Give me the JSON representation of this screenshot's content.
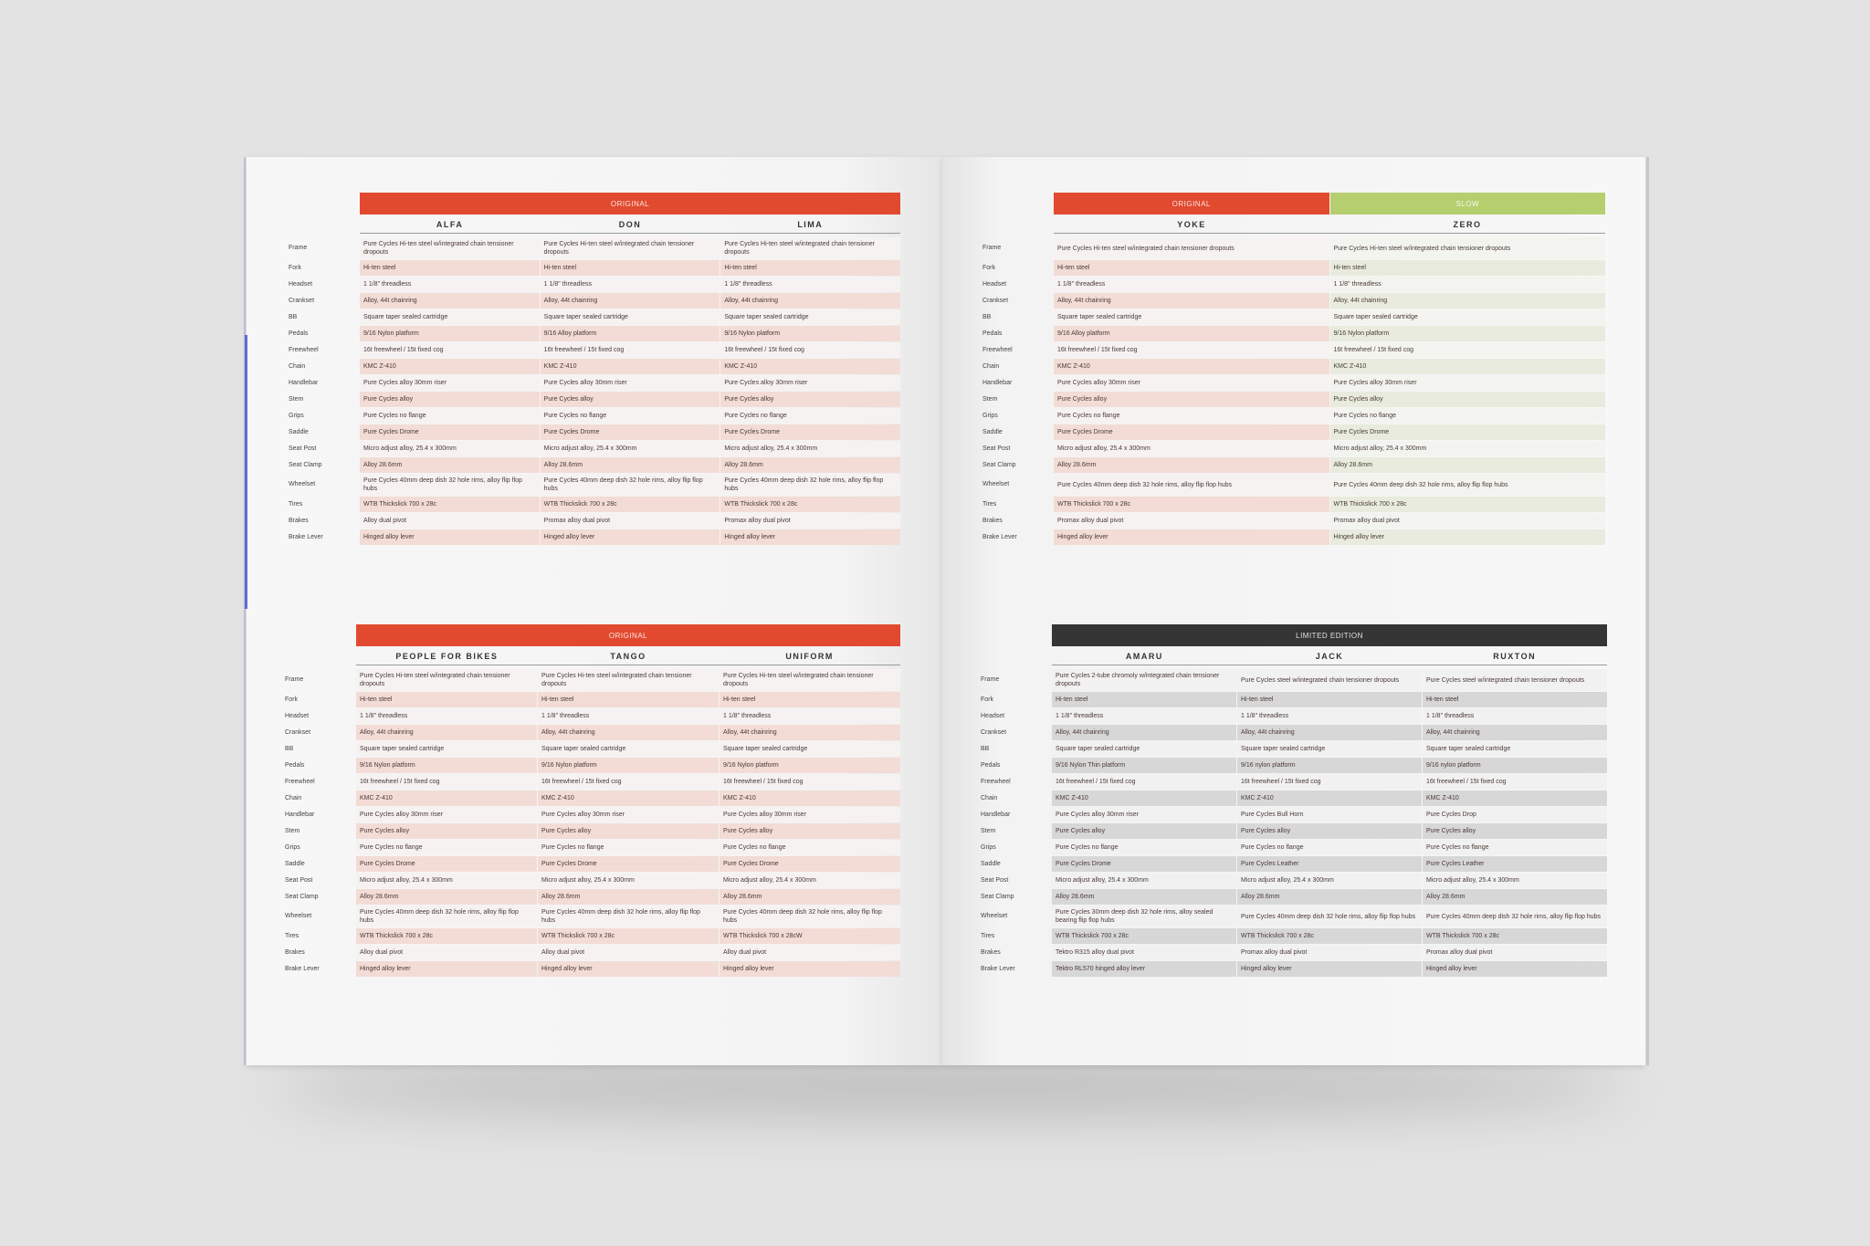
{
  "row_labels": [
    "Frame",
    "Fork",
    "Headset",
    "Crankset",
    "BB",
    "Pedals",
    "Freewheel",
    "Chain",
    "Handlebar",
    "Stem",
    "Grips",
    "Saddle",
    "Seat Post",
    "Seat Clamp",
    "Wheelset",
    "Tires",
    "Brakes",
    "Brake Lever"
  ],
  "colors": {
    "original": "#e24a2f",
    "slow": "#b5cf6f",
    "limited": "#353535",
    "orange_row": "#f2dcd5",
    "orange_row_alt": "#f6f2f1",
    "green_row": "#e8ebdd",
    "green_row_alt": "#f3f4ef",
    "gray_row": "#d7d7d7",
    "gray_row_alt": "#f1f1f1"
  },
  "sections": [
    {
      "id": "s1",
      "bars": [
        {
          "label": "ORIGINAL",
          "color": "original",
          "span": 3
        }
      ],
      "models": [
        "ALFA",
        "DON",
        "LIMA"
      ],
      "themes": [
        "orange",
        "orange",
        "orange"
      ],
      "rows": [
        [
          "Pure Cycles Hi-ten steel w/integrated chain tensioner dropouts",
          "Pure Cycles Hi-ten steel w/integrated chain tensioner dropouts",
          "Pure Cycles Hi-ten steel w/integrated chain tensioner dropouts"
        ],
        [
          "Hi-ten steel",
          "Hi-ten steel",
          "Hi-ten steel"
        ],
        [
          "1 1/8\" threadless",
          "1 1/8\" threadless",
          "1 1/8\" threadless"
        ],
        [
          "Alloy, 44t chainring",
          "Alloy, 44t chainring",
          "Alloy, 44t chainring"
        ],
        [
          "Square taper sealed cartridge",
          "Square taper sealed cartridge",
          "Square taper sealed cartridge"
        ],
        [
          "9/16 Nylon platform",
          "9/16 Alloy platform",
          "9/16 Nylon platform"
        ],
        [
          "16t freewheel / 15t fixed cog",
          "16t freewheel / 15t fixed cog",
          "16t freewheel / 15t fixed cog"
        ],
        [
          "KMC Z-410",
          "KMC Z-410",
          "KMC Z-410"
        ],
        [
          "Pure Cycles alloy 30mm riser",
          "Pure Cycles alloy 30mm riser",
          "Pure Cycles alloy 30mm riser"
        ],
        [
          "Pure Cycles alloy",
          "Pure Cycles alloy",
          "Pure Cycles alloy"
        ],
        [
          "Pure Cycles no flange",
          "Pure Cycles no flange",
          "Pure Cycles no flange"
        ],
        [
          "Pure Cycles Drome",
          "Pure Cycles Drome",
          "Pure Cycles Drome"
        ],
        [
          "Micro adjust alloy, 25.4 x 300mm",
          "Micro adjust alloy, 25.4 x 300mm",
          "Micro adjust alloy, 25.4 x 300mm"
        ],
        [
          "Alloy 28.6mm",
          "Alloy 28.6mm",
          "Alloy 28.6mm"
        ],
        [
          "Pure Cycles 40mm deep dish 32 hole rims, alloy flip flop hubs",
          "Pure Cycles 40mm deep dish 32 hole rims, alloy flip flop hubs",
          "Pure Cycles 40mm deep dish 32 hole rims, alloy flip flop hubs"
        ],
        [
          "WTB Thickslick 700 x 28c",
          "WTB Thickslick 700 x 28c",
          "WTB Thickslick 700 x 28c"
        ],
        [
          "Alloy dual pivot",
          "Promax alloy dual pivot",
          "Promax alloy dual pivot"
        ],
        [
          "Hinged alloy lever",
          "Hinged alloy lever",
          "Hinged alloy lever"
        ]
      ]
    },
    {
      "id": "s2",
      "bars": [
        {
          "label": "ORIGINAL",
          "color": "original",
          "span": 3
        }
      ],
      "models": [
        "PEOPLE FOR BIKES",
        "TANGO",
        "UNIFORM"
      ],
      "themes": [
        "orange",
        "orange",
        "orange"
      ],
      "rows": [
        [
          "Pure Cycles Hi-ten steel w/integrated chain tensioner dropouts",
          "Pure Cycles Hi-ten steel w/integrated chain tensioner dropouts",
          "Pure Cycles Hi-ten steel w/integrated chain tensioner dropouts"
        ],
        [
          "Hi-ten steel",
          "Hi-ten steel",
          "Hi-ten steel"
        ],
        [
          "1 1/8\" threadless",
          "1 1/8\" threadless",
          "1 1/8\" threadless"
        ],
        [
          "Alloy, 44t chainring",
          "Alloy, 44t chainring",
          "Alloy, 44t chainring"
        ],
        [
          "Square taper sealed cartridge",
          "Square taper sealed cartridge",
          "Square taper sealed cartridge"
        ],
        [
          "9/16 Nylon platform",
          "9/16 Nylon platform",
          "9/16 Nylon platform"
        ],
        [
          "16t freewheel / 15t fixed cog",
          "16t freewheel / 15t fixed cog",
          "16t freewheel / 15t fixed cog"
        ],
        [
          "KMC Z-410",
          "KMC Z-410",
          "KMC Z-410"
        ],
        [
          "Pure Cycles alloy 30mm riser",
          "Pure Cycles alloy 30mm riser",
          "Pure Cycles alloy 30mm riser"
        ],
        [
          "Pure Cycles alloy",
          "Pure Cycles alloy",
          "Pure Cycles alloy"
        ],
        [
          "Pure Cycles no flange",
          "Pure Cycles no flange",
          "Pure Cycles no flange"
        ],
        [
          "Pure Cycles Drome",
          "Pure Cycles Drome",
          "Pure Cycles Drome"
        ],
        [
          "Micro adjust alloy, 25.4 x 300mm",
          "Micro adjust alloy, 25.4 x 300mm",
          "Micro adjust alloy, 25.4 x 300mm"
        ],
        [
          "Alloy 28.6mm",
          "Alloy 28.6mm",
          "Alloy 28.6mm"
        ],
        [
          "Pure Cycles 40mm deep dish 32 hole rims, alloy flip flop hubs",
          "Pure Cycles 40mm deep dish 32 hole rims, alloy flip flop hubs",
          "Pure Cycles 40mm deep dish 32 hole rims, alloy flip flop hubs"
        ],
        [
          "WTB Thickslick 700 x 28c",
          "WTB Thickslick 700 x 28c",
          "WTB Thickslick 700 x 28cW"
        ],
        [
          "Alloy dual pivot",
          "Alloy dual pivot",
          "Alloy dual pivot"
        ],
        [
          "Hinged alloy lever",
          "Hinged alloy lever",
          "Hinged alloy lever"
        ]
      ]
    },
    {
      "id": "s3",
      "bars": [
        {
          "label": "ORIGINAL",
          "color": "original",
          "span": 1
        },
        {
          "label": "SLOW",
          "color": "slow",
          "span": 1
        }
      ],
      "models": [
        "YOKE",
        "ZERO"
      ],
      "themes": [
        "orange",
        "green"
      ],
      "rows": [
        [
          "Pure Cycles Hi-ten steel w/integrated chain tensioner dropouts",
          "Pure Cycles Hi-ten steel w/integrated chain tensioner dropouts"
        ],
        [
          "Hi-ten steel",
          "Hi-ten steel"
        ],
        [
          "1 1/8\" threadless",
          "1 1/8\" threadless"
        ],
        [
          "Alloy, 44t chainring",
          "Alloy, 44t chainring"
        ],
        [
          "Square taper sealed cartridge",
          "Square taper sealed cartridge"
        ],
        [
          "9/16 Alloy platform",
          "9/16 Nylon platform"
        ],
        [
          "16t freewheel / 15t fixed cog",
          "16t freewheel / 15t fixed cog"
        ],
        [
          "KMC Z-410",
          "KMC Z-410"
        ],
        [
          "Pure Cycles alloy 30mm riser",
          "Pure Cycles alloy 30mm riser"
        ],
        [
          "Pure Cycles alloy",
          "Pure Cycles alloy"
        ],
        [
          "Pure Cycles no flange",
          "Pure Cycles no flange"
        ],
        [
          "Pure Cycles Drome",
          "Pure Cycles Drome"
        ],
        [
          "Micro adjust alloy, 25.4 x 300mm",
          "Micro adjust alloy, 25.4 x 300mm"
        ],
        [
          "Alloy 28.6mm",
          "Alloy 28.6mm"
        ],
        [
          "Pure Cycles 40mm deep dish 32 hole rims, alloy flip flop hubs",
          "Pure Cycles 40mm deep dish 32 hole rims, alloy flip flop hubs"
        ],
        [
          "WTB Thickslick 700 x 28c",
          "WTB Thickslick 700 x 28c"
        ],
        [
          "Promax alloy dual pivot",
          "Promax alloy dual pivot"
        ],
        [
          "Hinged alloy lever",
          "Hinged alloy lever"
        ]
      ]
    },
    {
      "id": "s4",
      "bars": [
        {
          "label": "LIMITED EDITION",
          "color": "limited",
          "span": 3
        }
      ],
      "models": [
        "AMARU",
        "JACK",
        "RUXTON"
      ],
      "themes": [
        "gray",
        "gray",
        "gray"
      ],
      "rows": [
        [
          "Pure Cycles 2-tube chromoly w/integrated chain tensioner dropouts",
          "Pure Cycles steel w/integrated chain tensioner dropouts",
          "Pure Cycles  steel w/integrated chain tensioner dropouts"
        ],
        [
          "Hi-ten steel",
          "Hi-ten steel",
          "Hi-ten steel"
        ],
        [
          "1 1/8\" threadless",
          "1 1/8\" threadless",
          "1 1/8\" threadless"
        ],
        [
          "Alloy, 44t chainring",
          "Alloy, 44t chainring",
          "Alloy, 44t chainring"
        ],
        [
          "Square taper sealed cartridge",
          "Square taper sealed cartridge",
          "Square taper sealed cartridge"
        ],
        [
          "9/16 Nylon Thin platform",
          "9/16 nylon platform",
          "9/16 nylon platform"
        ],
        [
          "16t freewheel / 15t fixed cog",
          "16t freewheel / 15t fixed cog",
          "16t freewheel / 15t fixed cog"
        ],
        [
          "KMC Z-410",
          "KMC Z-410",
          "KMC Z-410"
        ],
        [
          "Pure Cycles alloy 30mm riser",
          "Pure Cycles Bull Horn",
          "Pure Cycles Drop"
        ],
        [
          "Pure Cycles alloy",
          "Pure Cycles alloy",
          "Pure Cycles alloy"
        ],
        [
          "Pure Cycles no flange",
          "Pure Cycles no flange",
          "Pure Cycles no flange"
        ],
        [
          "Pure Cycles Drome",
          "Pure Cycles Leather",
          "Pure Cycles Leather"
        ],
        [
          "Micro adjust alloy, 25.4 x 300mm",
          "Micro adjust alloy, 25.4 x 300mm",
          "Micro adjust alloy, 25.4 x 300mm"
        ],
        [
          "Alloy 28.6mm",
          "Alloy 28.6mm",
          "Alloy 28.6mm"
        ],
        [
          "Pure Cycles 30mm deep dish 32 hole rims, alloy sealed bearing flip flop hubs",
          "Pure Cycles 40mm deep dish 32 hole rims, alloy flip flop hubs",
          "Pure Cycles 40mm deep dish 32 hole rims, alloy flip flop hubs"
        ],
        [
          "WTB Thickslick 700 x 28c",
          "WTB Thickslick 700 x 28c",
          "WTB Thickslick 700 x 28c"
        ],
        [
          "Tektro R315 alloy dual pivot",
          "Promax alloy dual pivot",
          "Promax alloy dual pivot"
        ],
        [
          "Tektro RL570 hinged alloy lever",
          "Hinged alloy lever",
          "Hinged alloy lever"
        ]
      ]
    }
  ]
}
